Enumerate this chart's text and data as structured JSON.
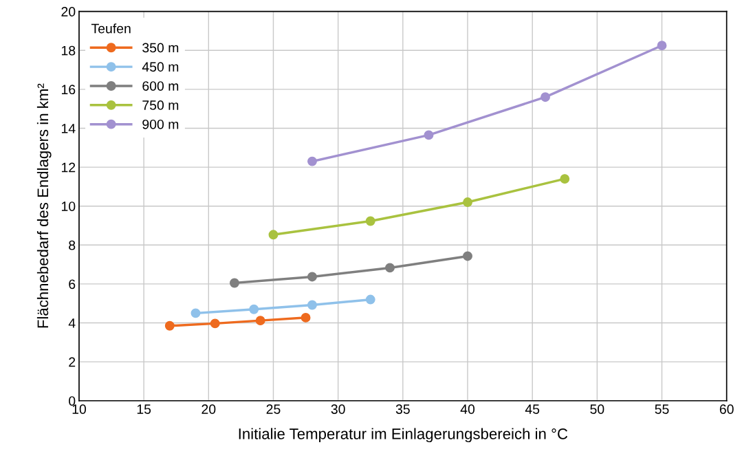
{
  "chart_data": {
    "type": "line",
    "xlabel": "Initialie Temperatur im Einlagerungsbereich in °C",
    "ylabel": "Flächnebedarf des Endlagers in km²",
    "legend_title": "Teufen",
    "xlim": [
      10,
      60
    ],
    "xticks": [
      10,
      15,
      20,
      25,
      30,
      35,
      40,
      45,
      50,
      55,
      60
    ],
    "ylim": [
      0,
      20
    ],
    "yticks": [
      0,
      2,
      4,
      6,
      8,
      10,
      12,
      14,
      16,
      18,
      20
    ],
    "grid": true,
    "legend": "top left",
    "marker": "circle",
    "line_style": "solid",
    "series": [
      {
        "name": "350 m",
        "color": "#ee6a1e",
        "x": [
          17,
          20.5,
          24,
          27.5
        ],
        "values": [
          3.85,
          3.97,
          4.12,
          4.27
        ]
      },
      {
        "name": "450 m",
        "color": "#8fc1ea",
        "x": [
          19,
          23.5,
          28,
          32.5
        ],
        "values": [
          4.5,
          4.7,
          4.92,
          5.2
        ]
      },
      {
        "name": "600 m",
        "color": "#7f7f7f",
        "x": [
          22,
          28,
          34,
          40
        ],
        "values": [
          6.05,
          6.37,
          6.83,
          7.43
        ]
      },
      {
        "name": "750 m",
        "color": "#a9c23f",
        "x": [
          25,
          32.5,
          40,
          47.5
        ],
        "values": [
          8.53,
          9.23,
          10.2,
          11.4
        ]
      },
      {
        "name": "900 m",
        "color": "#a291d0",
        "x": [
          28,
          37,
          46,
          55
        ],
        "values": [
          12.3,
          13.65,
          15.6,
          18.25
        ]
      }
    ]
  }
}
